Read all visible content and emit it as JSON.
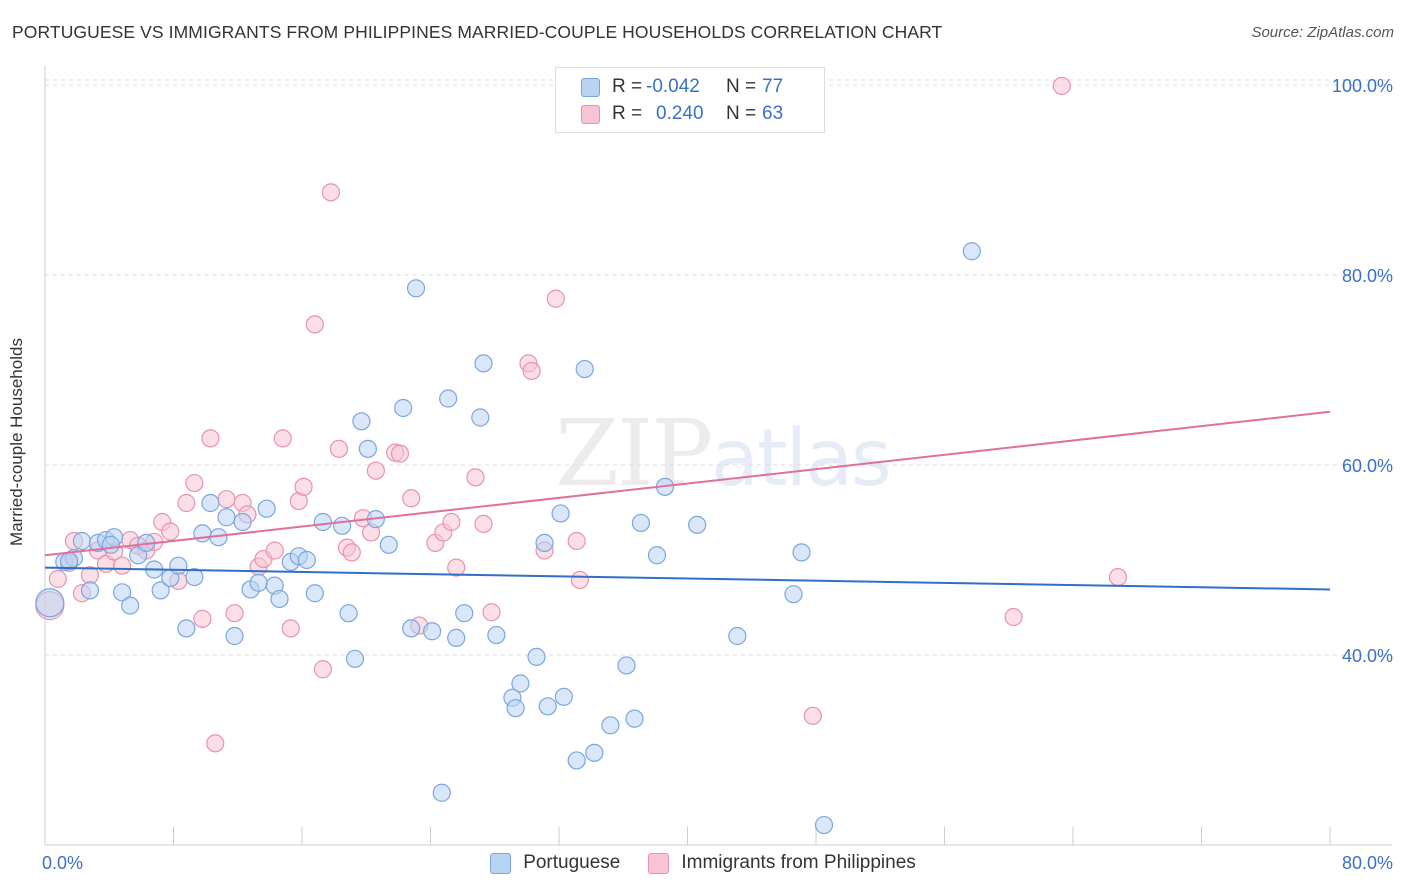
{
  "header": {
    "title": "PORTUGUESE VS IMMIGRANTS FROM PHILIPPINES MARRIED-COUPLE HOUSEHOLDS CORRELATION CHART",
    "source": "Source: ZipAtlas.com"
  },
  "watermark": {
    "zip": "ZIP",
    "atlas": "atlas"
  },
  "legend": {
    "rows": [
      {
        "r_label": "R =",
        "r_value": "-0.042",
        "n_label": "N =",
        "n_value": "77"
      },
      {
        "r_label": "R =",
        "r_value": "0.240",
        "n_label": "N =",
        "n_value": "63"
      }
    ]
  },
  "colors": {
    "blue_fill": "#b9d3f3",
    "blue_stroke": "#7aa6e0",
    "blue_line": "#2f6fc6",
    "pink_fill": "#f7c4d4",
    "pink_stroke": "#e892b0",
    "pink_line": "#e0709a",
    "tick_label": "#3a70c8",
    "grid": "#dddddd"
  },
  "chart_data": {
    "type": "scatter",
    "title": "PORTUGUESE VS IMMIGRANTS FROM PHILIPPINES MARRIED-COUPLE HOUSEHOLDS CORRELATION CHART",
    "xlabel": "",
    "ylabel": "Married-couple Households",
    "xlim": [
      0,
      80
    ],
    "ylim": [
      20,
      102
    ],
    "x_tick_labels": [
      "0.0%",
      "80.0%"
    ],
    "y_ticks": [
      40,
      60,
      80,
      100
    ],
    "y_tick_labels": [
      "40.0%",
      "60.0%",
      "80.0%",
      "100.0%"
    ],
    "grid": true,
    "legend_position": "bottom",
    "series": [
      {
        "name": "Portuguese",
        "r": -0.042,
        "n": 77,
        "trend": {
          "x": [
            0,
            80
          ],
          "y": [
            49.2,
            46.9
          ]
        },
        "points": [
          [
            0.3,
            45.5
          ],
          [
            1.2,
            49.8
          ],
          [
            1.8,
            50.2
          ],
          [
            2.3,
            52
          ],
          [
            2.8,
            46.8
          ],
          [
            3.3,
            51.8
          ],
          [
            3.8,
            52.1
          ],
          [
            4.3,
            52.4
          ],
          [
            4.8,
            46.6
          ],
          [
            5.3,
            45.2
          ],
          [
            5.8,
            50.5
          ],
          [
            6.3,
            51.8
          ],
          [
            6.8,
            49
          ],
          [
            7.2,
            46.8
          ],
          [
            7.8,
            48.1
          ],
          [
            8.3,
            49.4
          ],
          [
            8.8,
            42.8
          ],
          [
            9.3,
            48.2
          ],
          [
            9.8,
            52.8
          ],
          [
            10.3,
            56
          ],
          [
            10.8,
            52.4
          ],
          [
            11.3,
            54.5
          ],
          [
            11.8,
            42
          ],
          [
            12.3,
            54
          ],
          [
            12.8,
            46.9
          ],
          [
            13.3,
            47.6
          ],
          [
            13.8,
            55.4
          ],
          [
            14.3,
            47.3
          ],
          [
            14.6,
            45.9
          ],
          [
            15.3,
            49.8
          ],
          [
            15.8,
            50.4
          ],
          [
            16.3,
            50
          ],
          [
            16.8,
            46.5
          ],
          [
            17.3,
            54
          ],
          [
            18.5,
            53.6
          ],
          [
            18.9,
            44.4
          ],
          [
            19.3,
            39.6
          ],
          [
            19.7,
            64.6
          ],
          [
            20.1,
            61.7
          ],
          [
            20.6,
            54.3
          ],
          [
            21.4,
            51.6
          ],
          [
            22.3,
            66
          ],
          [
            22.8,
            42.8
          ],
          [
            23.1,
            78.6
          ],
          [
            24.1,
            42.5
          ],
          [
            25.1,
            67
          ],
          [
            25.6,
            41.8
          ],
          [
            26.1,
            44.4
          ],
          [
            27.1,
            65
          ],
          [
            27.3,
            70.7
          ],
          [
            28.1,
            42.1
          ],
          [
            29.1,
            35.5
          ],
          [
            29.3,
            34.4
          ],
          [
            29.6,
            37
          ],
          [
            30.6,
            39.8
          ],
          [
            31.1,
            51.8
          ],
          [
            31.3,
            34.6
          ],
          [
            32.1,
            54.9
          ],
          [
            32.3,
            35.6
          ],
          [
            33.1,
            28.9
          ],
          [
            33.6,
            70.1
          ],
          [
            34.2,
            29.7
          ],
          [
            35.2,
            32.6
          ],
          [
            36.2,
            38.9
          ],
          [
            36.7,
            33.3
          ],
          [
            37.1,
            53.9
          ],
          [
            38.1,
            50.5
          ],
          [
            38.6,
            57.7
          ],
          [
            40.6,
            53.7
          ],
          [
            43.1,
            42
          ],
          [
            46.6,
            46.4
          ],
          [
            47.1,
            50.8
          ],
          [
            48.5,
            22.1
          ],
          [
            57.7,
            82.5
          ],
          [
            24.7,
            25.5
          ],
          [
            4.1,
            51.6
          ],
          [
            1.5,
            49.9
          ]
        ]
      },
      {
        "name": "Immigrants from Philippines",
        "r": 0.24,
        "n": 63,
        "trend": {
          "x": [
            0,
            80
          ],
          "y": [
            50.5,
            65.6
          ]
        },
        "points": [
          [
            0.3,
            45.2
          ],
          [
            0.8,
            48
          ],
          [
            1.5,
            49.7
          ],
          [
            1.8,
            52
          ],
          [
            2.3,
            46.5
          ],
          [
            2.8,
            48.4
          ],
          [
            3.3,
            51
          ],
          [
            3.8,
            49.6
          ],
          [
            4.3,
            50.9
          ],
          [
            4.8,
            49.4
          ],
          [
            5.3,
            52.1
          ],
          [
            5.8,
            51.5
          ],
          [
            6.3,
            51
          ],
          [
            6.8,
            51.9
          ],
          [
            7.3,
            54
          ],
          [
            7.8,
            53
          ],
          [
            8.3,
            47.8
          ],
          [
            8.8,
            56
          ],
          [
            9.3,
            58.1
          ],
          [
            9.8,
            43.8
          ],
          [
            10.3,
            62.8
          ],
          [
            10.6,
            30.7
          ],
          [
            11.3,
            56.4
          ],
          [
            11.8,
            44.4
          ],
          [
            12.3,
            56
          ],
          [
            12.6,
            54.8
          ],
          [
            13.3,
            49.3
          ],
          [
            13.6,
            50.1
          ],
          [
            14.3,
            51
          ],
          [
            14.8,
            62.8
          ],
          [
            15.3,
            42.8
          ],
          [
            15.8,
            56.2
          ],
          [
            16.1,
            57.7
          ],
          [
            16.8,
            74.8
          ],
          [
            17.3,
            38.5
          ],
          [
            17.8,
            88.7
          ],
          [
            18.3,
            61.7
          ],
          [
            18.8,
            51.3
          ],
          [
            19.1,
            50.8
          ],
          [
            19.8,
            54.4
          ],
          [
            20.3,
            52.9
          ],
          [
            20.6,
            59.4
          ],
          [
            21.8,
            61.3
          ],
          [
            22.1,
            61.2
          ],
          [
            22.8,
            56.5
          ],
          [
            23.3,
            43.1
          ],
          [
            24.3,
            51.8
          ],
          [
            24.8,
            52.9
          ],
          [
            25.3,
            54
          ],
          [
            25.6,
            49.2
          ],
          [
            26.8,
            58.7
          ],
          [
            27.3,
            53.8
          ],
          [
            27.8,
            44.5
          ],
          [
            30.1,
            70.7
          ],
          [
            30.3,
            69.9
          ],
          [
            31.1,
            51
          ],
          [
            31.8,
            77.5
          ],
          [
            33.1,
            52
          ],
          [
            33.3,
            47.9
          ],
          [
            47.8,
            33.6
          ],
          [
            60.3,
            44
          ],
          [
            63.3,
            99.9
          ],
          [
            66.8,
            48.2
          ]
        ]
      }
    ]
  }
}
